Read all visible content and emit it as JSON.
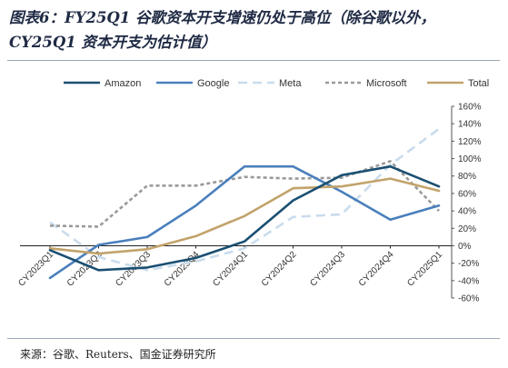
{
  "title": "图表6：FY25Q1 谷歌资本开支增速仍处于高位（除谷歌以外，CY25Q1 资本开支为估计值）",
  "source": "来源：谷歌、Reuters、国金证券研究所",
  "chart_data": {
    "type": "line",
    "x": [
      "CY2023Q1",
      "CY2023Q2",
      "CY2023Q3",
      "CY2023Q4",
      "CY2024Q1",
      "CY2024Q2",
      "CY2024Q3",
      "CY2024Q4",
      "CY2025Q1"
    ],
    "y_ticks": [
      "160%",
      "140%",
      "120%",
      "100%",
      "80%",
      "60%",
      "40%",
      "20%",
      "0%",
      "-20%",
      "-40%",
      "-60%"
    ],
    "ylim": [
      -60,
      160
    ],
    "y_unit": "%",
    "legend_position": "top",
    "series": [
      {
        "name": "Amazon",
        "color": "#1a4f72",
        "dash": "",
        "values": [
          -5,
          -28,
          -25,
          -14,
          5,
          52,
          81,
          91,
          68
        ]
      },
      {
        "name": "Google",
        "color": "#4a7fbc",
        "dash": "",
        "values": [
          -37,
          1,
          10,
          46,
          91,
          91,
          62,
          30,
          46
        ]
      },
      {
        "name": "Meta",
        "color": "#c9dced",
        "dash": "10,6",
        "values": [
          27,
          -13,
          -28,
          -18,
          -3,
          33,
          36,
          93,
          134
        ]
      },
      {
        "name": "Microsoft",
        "color": "#9a9a9a",
        "dash": "4,3",
        "values": [
          23,
          22,
          69,
          69,
          79,
          77,
          78,
          97,
          40
        ]
      },
      {
        "name": "Total",
        "color": "#c2a36b",
        "dash": "",
        "values": [
          -3,
          -9,
          -4,
          11,
          34,
          66,
          68,
          77,
          63
        ]
      }
    ]
  }
}
